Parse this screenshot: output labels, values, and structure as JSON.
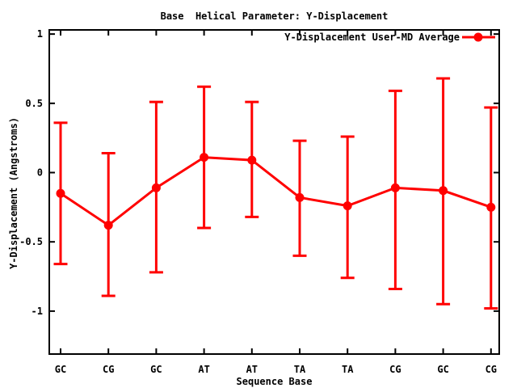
{
  "colors": {
    "background": "#ffffff",
    "text": "#000000",
    "series": "#ff0000",
    "border": "#000000"
  },
  "chart_data": {
    "type": "line",
    "title": "Base  Helical Parameter: Y-Displacement",
    "xlabel": "Sequence Base",
    "ylabel": "Y-Displacement (Angstroms)",
    "grid": false,
    "legend_position": "top-right-inside",
    "categories": [
      "GC",
      "CG",
      "GC",
      "AT",
      "AT",
      "TA",
      "TA",
      "CG",
      "GC",
      "CG"
    ],
    "yticks": [
      1,
      0.5,
      0,
      -0.5,
      -1
    ],
    "ytick_labels": [
      "1",
      "0.5",
      "0",
      "-0.5",
      "-1"
    ],
    "ylim": [
      -1.31,
      1.03
    ],
    "series": [
      {
        "name": "Y-Displacement User-MD Average",
        "color": "#ff0000",
        "marker": "filled-circle",
        "values": [
          -0.15,
          -0.38,
          -0.11,
          0.11,
          0.09,
          -0.18,
          -0.24,
          -0.11,
          -0.13,
          -0.25
        ],
        "err_high": [
          0.36,
          0.14,
          0.51,
          0.62,
          0.51,
          0.23,
          0.26,
          0.59,
          0.68,
          0.47
        ],
        "err_low": [
          -0.66,
          -0.89,
          -0.72,
          -0.4,
          -0.32,
          -0.6,
          -0.76,
          -0.84,
          -0.95,
          -0.98
        ]
      }
    ]
  }
}
